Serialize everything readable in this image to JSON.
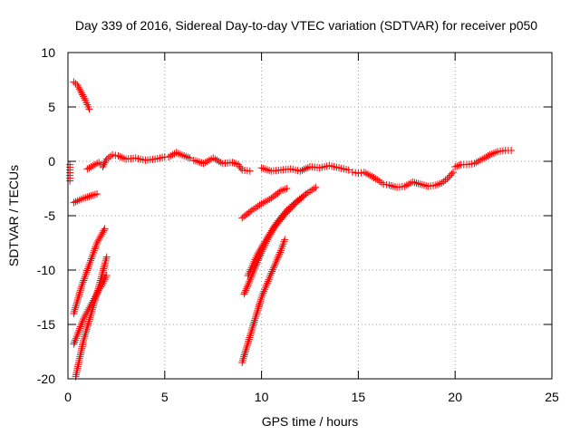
{
  "chart_data": {
    "type": "scatter",
    "title": "Day 339 of 2016, Sidereal Day-to-day VTEC variation (SDTVAR) for receiver p050",
    "xlabel": "GPS time / hours",
    "ylabel": "SDTVAR / TECUs",
    "xlim": [
      0,
      25
    ],
    "ylim": [
      -20,
      10
    ],
    "xticks": [
      0,
      5,
      10,
      15,
      20,
      25
    ],
    "yticks": [
      10,
      5,
      0,
      -5,
      -10,
      -15,
      -20
    ],
    "xtick_labels": [
      "0",
      "5",
      "10",
      "15",
      "20",
      "25"
    ],
    "ytick_labels": [
      "10",
      "5",
      "0",
      "-5",
      "-10",
      "-15",
      "-20"
    ],
    "grid": true,
    "marker": "+",
    "series_color": "#ff0000",
    "series": [
      {
        "x": [
          0.3,
          0.5,
          0.7,
          0.9,
          1.1
        ],
        "y": [
          7.3,
          7.0,
          6.3,
          5.6,
          4.8
        ]
      },
      {
        "x": [
          0.1,
          0.1,
          0.1,
          0.1
        ],
        "y": [
          -0.3,
          -0.8,
          -1.3,
          -1.8
        ]
      },
      {
        "x": [
          0.3,
          0.8,
          1.3,
          1.5
        ],
        "y": [
          -3.8,
          -3.4,
          -3.1,
          -3.0
        ]
      },
      {
        "x": [
          1.0,
          1.3,
          1.6,
          1.8,
          2.0,
          2.3,
          2.6,
          3.0,
          3.5,
          4.0,
          4.5,
          5.0
        ],
        "y": [
          -0.7,
          -0.4,
          -0.1,
          -0.5,
          0.2,
          0.6,
          0.5,
          0.2,
          0.3,
          0.1,
          0.2,
          0.4
        ]
      },
      {
        "x": [
          5.2,
          5.6,
          6.0,
          6.3
        ],
        "y": [
          0.4,
          0.8,
          0.5,
          0.3
        ]
      },
      {
        "x": [
          6.5,
          7.0,
          7.5,
          8.0,
          8.5,
          8.8,
          9.0,
          9.4
        ],
        "y": [
          0.1,
          -0.2,
          0.3,
          -0.2,
          -0.1,
          -0.3,
          -0.8,
          -0.9
        ]
      },
      {
        "x": [
          0.3,
          0.7,
          1.1,
          1.5,
          1.9
        ],
        "y": [
          -14.0,
          -11.5,
          -9.5,
          -7.5,
          -6.2
        ]
      },
      {
        "x": [
          0.3,
          0.8,
          1.3,
          1.8,
          2.0
        ],
        "y": [
          -16.8,
          -14.5,
          -12.8,
          -11.2,
          -10.5
        ]
      },
      {
        "x": [
          0.4,
          0.8,
          1.2,
          1.6,
          2.0
        ],
        "y": [
          -19.8,
          -16.5,
          -14.0,
          -11.5,
          -8.8
        ]
      },
      {
        "x": [
          9.0,
          9.5,
          10.0,
          10.5,
          11.0,
          11.3
        ],
        "y": [
          -5.2,
          -4.5,
          -3.9,
          -3.4,
          -2.7,
          -2.5
        ]
      },
      {
        "x": [
          9.1,
          9.5,
          9.9,
          10.3,
          10.7,
          11.2,
          11.8,
          12.3,
          12.8
        ],
        "y": [
          -12.2,
          -10.5,
          -8.8,
          -7.2,
          -6.0,
          -4.9,
          -3.8,
          -3.0,
          -2.4
        ]
      },
      {
        "x": [
          9.3,
          9.8,
          10.3,
          10.8,
          11.3,
          11.8,
          12.3
        ],
        "y": [
          -10.5,
          -8.5,
          -7.0,
          -5.6,
          -4.5,
          -3.7,
          -3.0
        ]
      },
      {
        "x": [
          9.0,
          9.5,
          10.0,
          10.5,
          11.0,
          11.2
        ],
        "y": [
          -18.5,
          -15.5,
          -12.5,
          -10.3,
          -8.2,
          -7.2
        ]
      },
      {
        "x": [
          10.0,
          10.5,
          11.0,
          11.5,
          12.0,
          12.5,
          13.0,
          13.5,
          14.0,
          14.5
        ],
        "y": [
          -0.6,
          -0.9,
          -0.8,
          -0.7,
          -0.9,
          -0.5,
          -0.6,
          -0.4,
          -0.6,
          -0.8
        ]
      },
      {
        "x": [
          14.7,
          15.0,
          15.3,
          15.6,
          16.0,
          16.3,
          16.6,
          17.0,
          17.4,
          17.8,
          18.2,
          18.6,
          19.0,
          19.3,
          19.6,
          19.9
        ],
        "y": [
          -1.0,
          -1.1,
          -1.0,
          -1.3,
          -1.7,
          -2.1,
          -2.2,
          -2.4,
          -2.3,
          -1.9,
          -2.1,
          -2.3,
          -2.2,
          -2.0,
          -1.6,
          -1.0
        ]
      },
      {
        "x": [
          20.0,
          20.3,
          20.6,
          21.0,
          21.4,
          21.8,
          22.2,
          22.6,
          22.9
        ],
        "y": [
          -0.5,
          -0.3,
          -0.3,
          -0.2,
          0.2,
          0.6,
          0.9,
          1.0,
          1.0
        ]
      }
    ]
  }
}
